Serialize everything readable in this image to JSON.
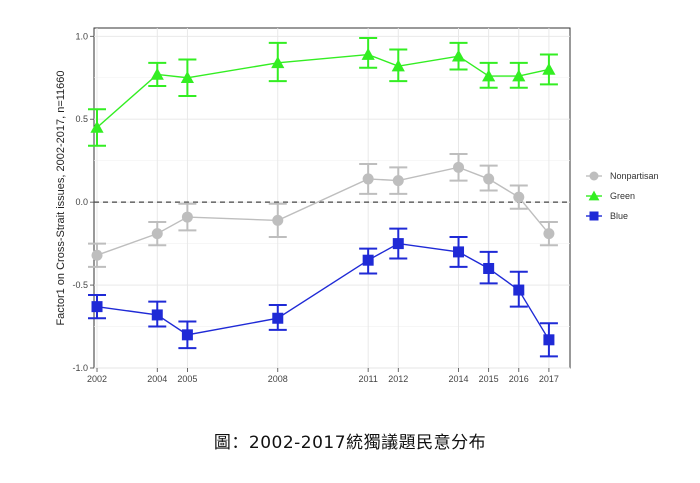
{
  "caption": "圖：2002-2017統獨議題民意分布",
  "chart_data": {
    "type": "line",
    "ylabel": "Factor1 on Cross-Strait issues, 2002-2017, n=11660",
    "xlabel": "",
    "x": [
      2002,
      2004,
      2005,
      2008,
      2011,
      2012,
      2014,
      2015,
      2016,
      2017
    ],
    "x_tick_labels": [
      "2002",
      "2004",
      "2005",
      "2008",
      "2011",
      "2012",
      "2014",
      "2015",
      "2016",
      "2017"
    ],
    "xlim": [
      2001.9,
      2017.7
    ],
    "ylim": [
      -1.0,
      1.05
    ],
    "y_ticks": [
      -1.0,
      -0.5,
      0.0,
      0.5,
      1.0
    ],
    "y_tick_labels": [
      "-1.0",
      "-0.5",
      "0.0",
      "0.5",
      "1.0"
    ],
    "grid": true,
    "reference_line": 0.0,
    "legend_position": "right",
    "series": [
      {
        "name": "Nonpartisan",
        "color": "#bebebe",
        "marker": "circle",
        "values": [
          -0.32,
          -0.19,
          -0.09,
          -0.11,
          0.14,
          0.13,
          0.21,
          0.14,
          0.03,
          -0.19
        ],
        "lower": [
          -0.39,
          -0.26,
          -0.17,
          -0.21,
          0.05,
          0.05,
          0.13,
          0.07,
          -0.04,
          -0.26
        ],
        "upper": [
          -0.25,
          -0.12,
          -0.01,
          -0.01,
          0.23,
          0.21,
          0.29,
          0.22,
          0.1,
          -0.12
        ]
      },
      {
        "name": "Green",
        "color": "#33ee22",
        "marker": "triangle",
        "values": [
          0.45,
          0.77,
          0.75,
          0.84,
          0.89,
          0.82,
          0.88,
          0.76,
          0.76,
          0.8
        ],
        "lower": [
          0.34,
          0.7,
          0.64,
          0.73,
          0.81,
          0.73,
          0.8,
          0.69,
          0.69,
          0.71
        ],
        "upper": [
          0.56,
          0.84,
          0.86,
          0.96,
          0.99,
          0.92,
          0.96,
          0.84,
          0.84,
          0.89
        ]
      },
      {
        "name": "Blue",
        "color": "#1f2ad6",
        "marker": "square",
        "values": [
          -0.63,
          -0.68,
          -0.8,
          -0.7,
          -0.35,
          -0.25,
          -0.3,
          -0.4,
          -0.53,
          -0.83
        ],
        "lower": [
          -0.7,
          -0.75,
          -0.88,
          -0.77,
          -0.43,
          -0.34,
          -0.39,
          -0.49,
          -0.63,
          -0.93
        ],
        "upper": [
          -0.56,
          -0.6,
          -0.72,
          -0.62,
          -0.28,
          -0.16,
          -0.21,
          -0.3,
          -0.42,
          -0.73
        ]
      }
    ]
  }
}
